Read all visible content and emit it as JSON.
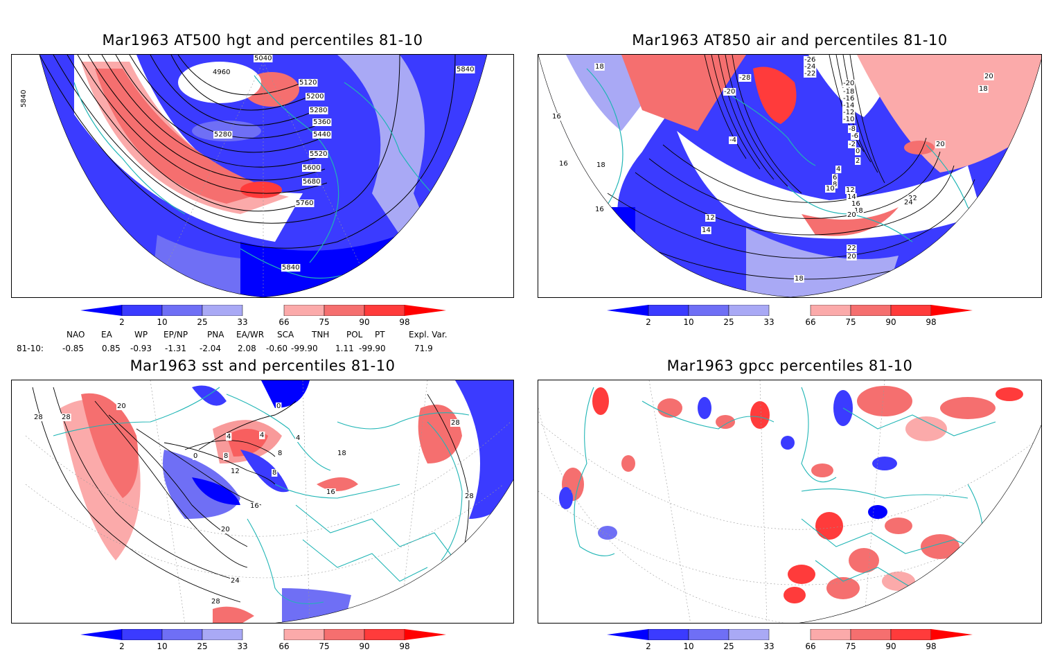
{
  "panels": {
    "top_left": {
      "title": "Mar1963 AT500 hgt and percentiles 81-10",
      "contour_labels": [
        "5040",
        "4960",
        "5120",
        "5200",
        "5280",
        "5360",
        "5440",
        "5280",
        "5520",
        "5600",
        "5680",
        "5760",
        "5840",
        "5840",
        "5840"
      ]
    },
    "top_right": {
      "title": "Mar1963 AT850 air and percentiles 81-10",
      "contour_labels": [
        "-26",
        "-28",
        "-24",
        "-22",
        "-20",
        "-20",
        "-18",
        "-16",
        "-14",
        "-12",
        "-10",
        "-8",
        "-6",
        "-4",
        "-2",
        "0",
        "2",
        "4",
        "6",
        "8",
        "10",
        "12",
        "14",
        "16",
        "18",
        "20",
        "22",
        "24",
        "18",
        "16",
        "16",
        "12",
        "14",
        "20",
        "22",
        "20",
        "18",
        "18",
        "16",
        "20",
        "18"
      ]
    },
    "bottom_left": {
      "title": "Mar1963 sst and percentiles 81-10",
      "contour_labels": [
        "28",
        "28",
        "20",
        "0",
        "4",
        "8",
        "12",
        "16",
        "20",
        "24",
        "28",
        "4",
        "0",
        "4",
        "8",
        "16",
        "8",
        "18",
        "28",
        "28"
      ]
    },
    "bottom_right": {
      "title": "Mar1963 gpcc percentiles 81-10"
    }
  },
  "colorbar": {
    "labels": [
      "2",
      "10",
      "25",
      "33",
      "66",
      "75",
      "90",
      "98"
    ],
    "colors": {
      "deep_blue": "#0000ff",
      "blue": "#3b3bff",
      "mid_blue": "#6f6ff5",
      "light_blue": "#a9a9f5",
      "white": "#ffffff",
      "light_red": "#fbaaaa",
      "mid_red": "#f56f6f",
      "red": "#ff3b3b",
      "deep_red": "#ff0000"
    }
  },
  "teleconnections": {
    "header": [
      "NAO",
      "EA",
      "WP",
      "EP/NP",
      "PNA",
      "EA/WR",
      "SCA",
      "TNH",
      "POL",
      "PT",
      "Expl. Var."
    ],
    "row_label": "81-10:",
    "values": [
      "-0.85",
      "0.85",
      "-0.93",
      "-1.31",
      "-2.04",
      "2.08",
      "-0.60",
      "-99.90",
      "1.11",
      "-99.90",
      "71.9"
    ]
  },
  "map_colors": {
    "coast": "#1fb5b5",
    "contour": "#000000",
    "graticule": "#999999"
  }
}
